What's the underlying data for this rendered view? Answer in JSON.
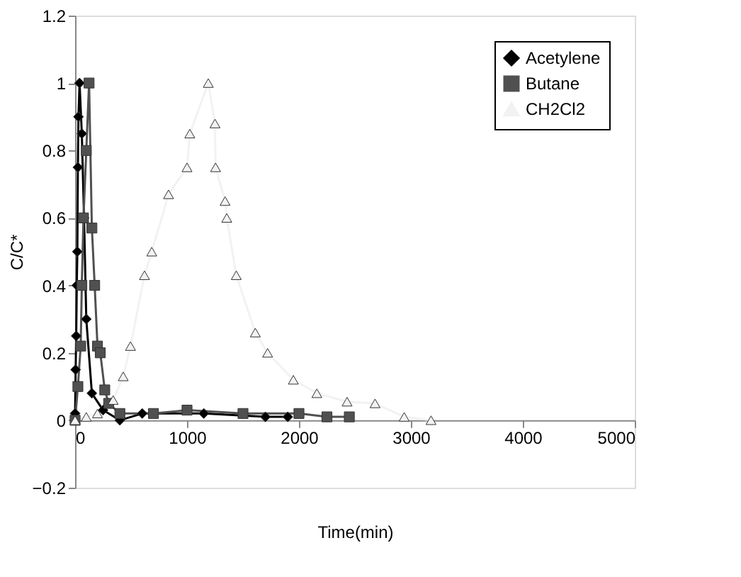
{
  "chart_data": {
    "type": "line",
    "xlabel": "Time(min)",
    "ylabel": "C/C*",
    "xlim": [
      0,
      5000
    ],
    "xticks": [
      0,
      1000,
      2000,
      3000,
      4000,
      5000
    ],
    "ylim": [
      -0.2,
      1.2
    ],
    "yticks": [
      -0.2,
      0,
      0.2,
      0.4,
      0.6,
      0.8,
      1,
      1.2
    ],
    "grid": false,
    "legend": "top right",
    "line_style": "solid",
    "series": [
      {
        "name": "Acetylene",
        "color": "#000000",
        "marker": "diamond",
        "x": [
          0,
          5,
          10,
          15,
          20,
          25,
          30,
          40,
          60,
          80,
          100,
          150,
          250,
          400,
          600,
          1150,
          1700,
          1900
        ],
        "values": [
          0.02,
          0.15,
          0.25,
          0.4,
          0.5,
          0.75,
          0.9,
          1.0,
          0.85,
          0.6,
          0.3,
          0.08,
          0.03,
          0.0,
          0.02,
          0.02,
          0.01,
          0.01
        ]
      },
      {
        "name": "Butane",
        "color": "#505050",
        "marker": "square",
        "x": [
          0,
          25,
          50,
          60,
          75,
          100,
          125,
          150,
          175,
          200,
          225,
          265,
          300,
          400,
          700,
          1000,
          1500,
          2000,
          2250,
          2450
        ],
        "values": [
          0.0,
          0.1,
          0.22,
          0.4,
          0.6,
          0.8,
          1.0,
          0.57,
          0.4,
          0.22,
          0.2,
          0.09,
          0.05,
          0.02,
          0.02,
          0.03,
          0.02,
          0.02,
          0.01,
          0.01
        ]
      },
      {
        "name": "CH2Cl2",
        "color": "#f2f2f2",
        "marker": "triangle",
        "x": [
          0,
          100,
          200,
          340,
          430,
          495,
          620,
          685,
          835,
          1000,
          1025,
          1190,
          1250,
          1255,
          1340,
          1355,
          1440,
          1610,
          1720,
          1950,
          2160,
          2430,
          2680,
          2940,
          3180
        ],
        "values": [
          0.0,
          0.01,
          0.02,
          0.06,
          0.13,
          0.22,
          0.43,
          0.5,
          0.67,
          0.75,
          0.85,
          1.0,
          0.88,
          0.75,
          0.65,
          0.6,
          0.43,
          0.26,
          0.2,
          0.12,
          0.08,
          0.055,
          0.05,
          0.01,
          0.0
        ]
      }
    ]
  }
}
